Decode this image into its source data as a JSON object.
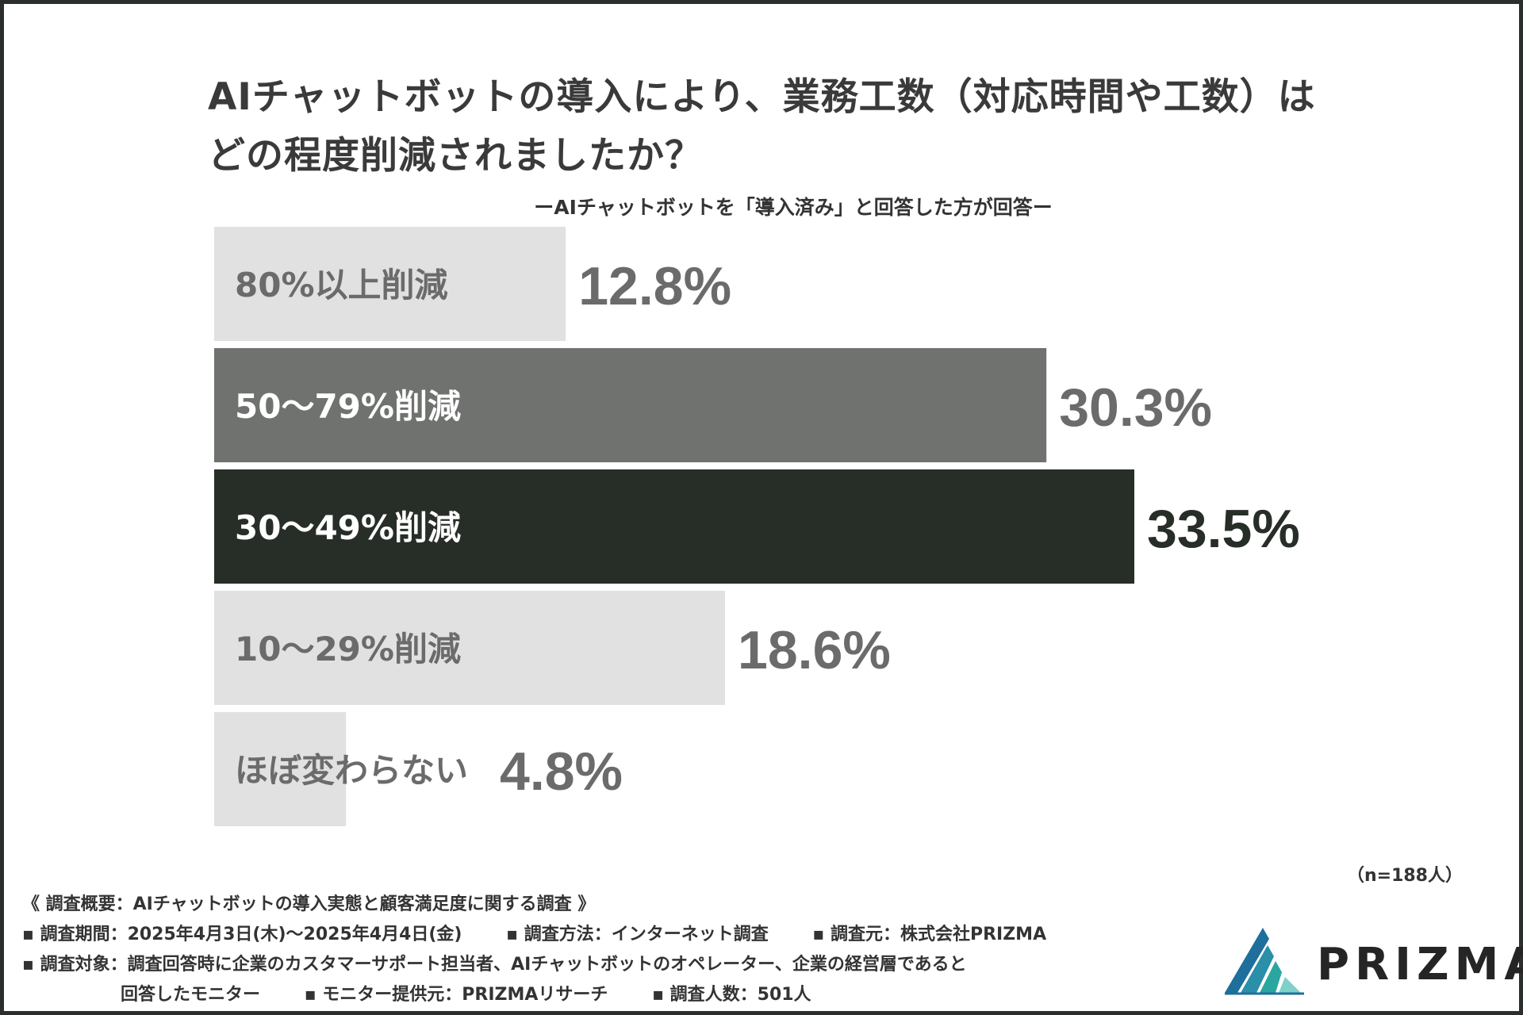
{
  "title_line1": "AIチャットボットの導入により、業務工数（対応時間や工数）は",
  "title_line2": "どの程度削減されましたか？",
  "subtitle": "ーAIチャットボットを「導入済み」と回答した方が回答ー",
  "chart_data": {
    "type": "bar",
    "orientation": "horizontal",
    "categories": [
      "80%以上削減",
      "50〜79%削減",
      "30〜49%削減",
      "10〜29%削減",
      "ほぼ変わらない"
    ],
    "values": [
      12.8,
      30.3,
      33.5,
      18.6,
      4.8
    ],
    "value_labels": [
      "12.8%",
      "30.3%",
      "33.5%",
      "18.6%",
      "4.8%"
    ],
    "xlim": [
      0,
      35
    ],
    "colors": [
      "#e1e1e1",
      "#6f726f",
      "#272d27",
      "#e1e1e1",
      "#e1e1e1"
    ],
    "label_colors": [
      "#6b6b6b",
      "#ffffff",
      "#ffffff",
      "#6b6b6b",
      "#6b6b6b"
    ],
    "value_colors": [
      "#6b6b6b",
      "#6b6b6b",
      "#272d27",
      "#6b6b6b",
      "#6b6b6b"
    ],
    "unit": "%"
  },
  "sample_note": "（n=188人）",
  "footer": {
    "line1": "《 調査概要：AIチャットボットの導入実態と顧客満足度に関する調査 》",
    "period": "▪ 調査期間：2025年4月3日(木)〜2025年4月4日(金)",
    "method": "▪ 調査方法：インターネット調査",
    "source": "▪ 調査元：株式会社PRIZMA",
    "target": "▪ 調査対象：調査回答時に企業のカスタマーサポート担当者、AIチャットボットのオペレーター、企業の経営層であると",
    "target_cont": "回答したモニター",
    "provider": "▪ モニター提供元：PRIZMAリサーチ",
    "count": "▪ 調査人数：501人"
  },
  "logo_text": "PRIZMA",
  "logo_colors": [
    "#1e6f9c",
    "#2aa6a0",
    "#7fd0c8"
  ]
}
